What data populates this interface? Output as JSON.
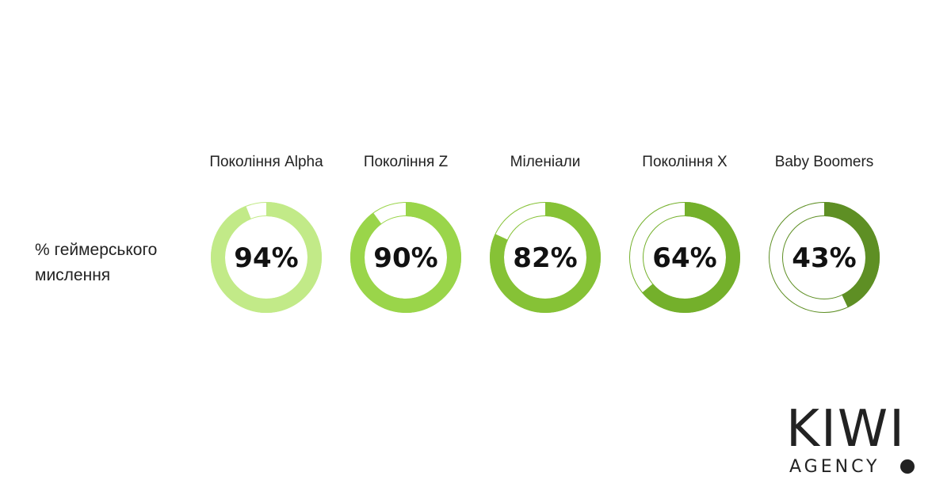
{
  "row_label": {
    "line1": "% геймерського",
    "line2": "мислення"
  },
  "chart_data": {
    "type": "donut",
    "title": "",
    "categories": [
      "Покоління Alpha",
      "Покоління Z",
      "Міленіали",
      "Покоління X",
      "Baby Boomers"
    ],
    "values": [
      94,
      90,
      82,
      64,
      43
    ],
    "value_labels": [
      "94%",
      "90%",
      "82%",
      "64%",
      "43%"
    ],
    "max": 100,
    "colors": [
      "#c2ea88",
      "#9ad54a",
      "#86c236",
      "#74b02b",
      "#5e8f24"
    ],
    "legend": "none",
    "grid": false
  },
  "logo": {
    "name": "KIWI",
    "sub": "AGENCY"
  }
}
